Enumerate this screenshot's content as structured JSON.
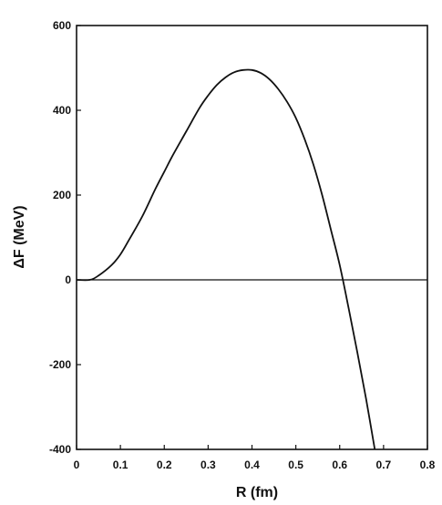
{
  "chart_data": {
    "type": "line",
    "title": "",
    "xlabel": "R (fm)",
    "ylabel": "ΔF (MeV)",
    "xlim": [
      0,
      0.8
    ],
    "ylim": [
      -400,
      600
    ],
    "xticks": [
      0,
      0.1,
      0.2,
      0.3,
      0.4,
      0.5,
      0.6,
      0.7,
      0.8
    ],
    "xtick_labels": [
      "0",
      "0.1",
      "0.2",
      "0.3",
      "0.4",
      "0.5",
      "0.6",
      "0.7",
      "0.8"
    ],
    "yticks": [
      -400,
      -200,
      0,
      200,
      400,
      600
    ],
    "ytick_labels": [
      "-400",
      "-200",
      "0",
      "200",
      "400",
      "600"
    ],
    "grid": false,
    "reference_line_y": 0,
    "series": [
      {
        "x": [
          0.0,
          0.03,
          0.05,
          0.08,
          0.1,
          0.12,
          0.15,
          0.18,
          0.2,
          0.22,
          0.25,
          0.28,
          0.3,
          0.32,
          0.34,
          0.36,
          0.38,
          0.4,
          0.42,
          0.44,
          0.46,
          0.48,
          0.5,
          0.52,
          0.54,
          0.56,
          0.58,
          0.6,
          0.62,
          0.64,
          0.66,
          0.68
        ],
        "y": [
          0,
          0,
          10,
          35,
          60,
          95,
          150,
          215,
          255,
          295,
          350,
          405,
          435,
          460,
          478,
          490,
          495,
          495,
          488,
          473,
          450,
          420,
          382,
          332,
          272,
          200,
          118,
          35,
          -65,
          -170,
          -280,
          -400
        ],
        "color": "#111111"
      }
    ]
  }
}
